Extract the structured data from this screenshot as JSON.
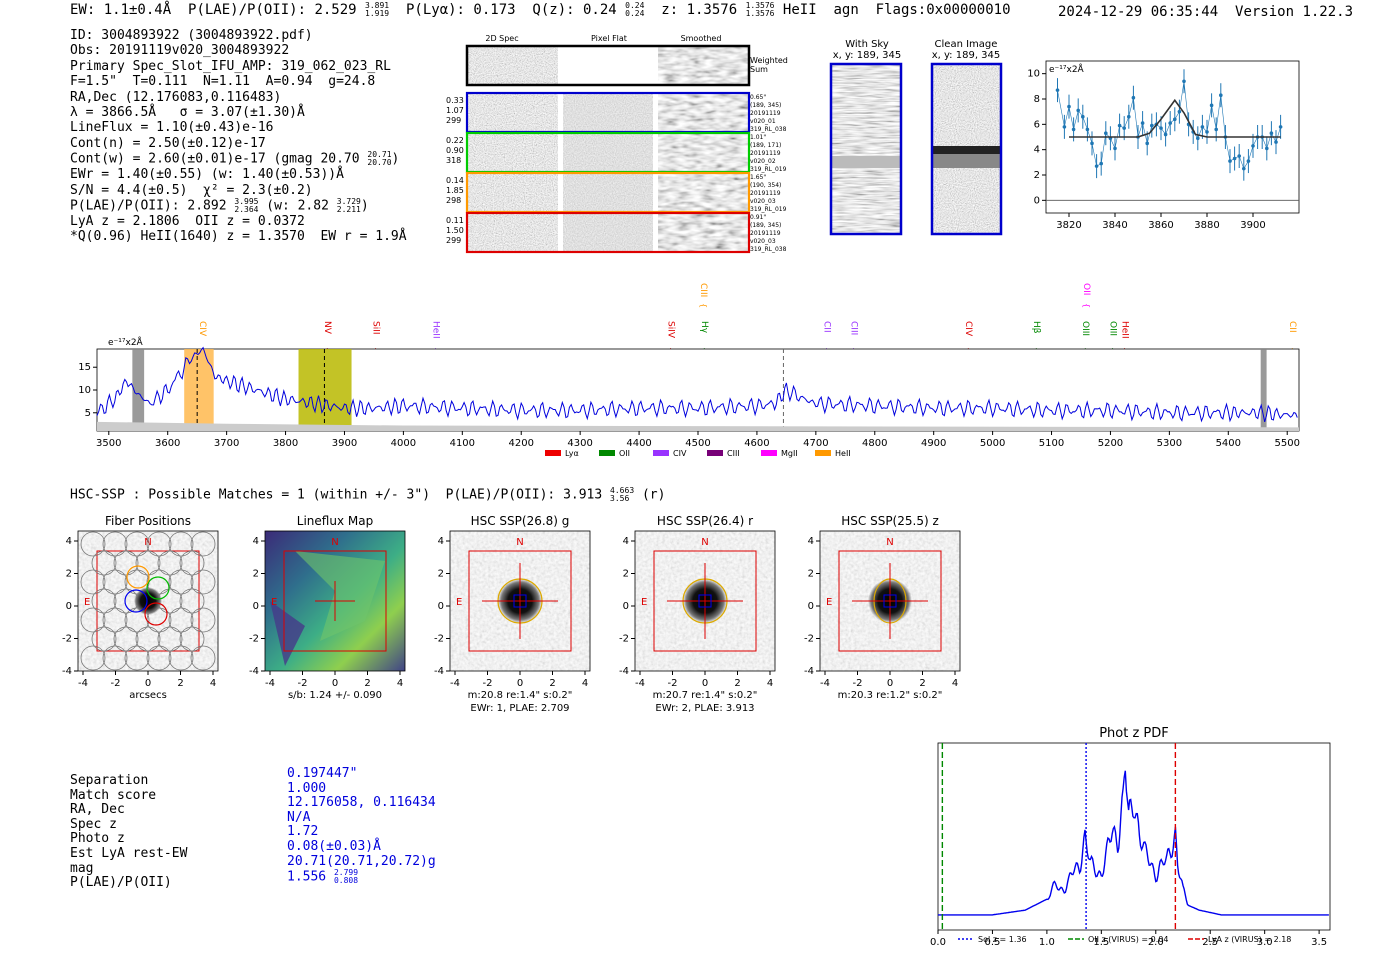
{
  "header": {
    "ew": "EW: 1.1±0.4Å",
    "plae": "P(LAE)/P(OII): 2.529",
    "plae_hi": "3.891",
    "plae_lo": "1.919",
    "plya": "P(Lyα): 0.173",
    "q": "Q(z): 0.24",
    "q_hi": "0.24",
    "q_lo": "0.24",
    "z": "z: 1.3576",
    "z_hi": "1.3576",
    "z_lo": "1.3576",
    "line": "HeII",
    "agn": "agn",
    "flags": "Flags:0x00000010",
    "datetime": "2024-12-29 06:35:44",
    "version": "Version 1.22.3"
  },
  "info": {
    "id": "ID: 3004893922 (3004893922.pdf)",
    "obs": "Obs: 20191119v020_3004893922",
    "primary": "Primary Spec_Slot_IFU_AMP: 319_062_023_RL",
    "params": "F=1.5\"  T=0.111  N=1.11  A=0.94  g=24.8",
    "radec": "RA,Dec (12.176083,0.116483)",
    "lambda": "λ = 3866.5Å   σ = 3.07(±1.30)Å",
    "lineflux": "LineFlux = 1.10(±0.43)e-16",
    "contn": "Cont(n) = 2.50(±0.12)e-17",
    "contw": "Cont(w) = 2.60(±0.01)e-17 (gmag 20.70",
    "contw_hi": "20.71",
    "contw_lo": "20.70",
    "ewr": "EWr = 1.40(±0.55) (w: 1.40(±0.53))Å",
    "sn": "S/N = 4.4(±0.5)  χ² = 2.3(±0.2)",
    "plae2": "P(LAE)/P(OII): 2.892",
    "plae2_hi": "3.995",
    "plae2_lo": "2.364",
    "plae2_w": "(w: 2.82",
    "plae2_w_hi": "3.729",
    "plae2_w_lo": "2.211",
    "lya": "LyA z = 2.1806  OII z = 0.0372",
    "q2": "*Q(0.96) HeII(1640) z = 1.3570  EW r = 1.9Å"
  },
  "cutouts": {
    "col_2d": "2D Spec",
    "col_flat": "Pixel Flat",
    "col_smooth": "Smoothed",
    "weighted": "Weighted",
    "sum": "Sum",
    "rows": [
      {
        "n1": "0.33",
        "n2": "1.07",
        "n3": "299",
        "t1": "0.65\"",
        "t2": "(189, 345)",
        "t3": "20191119",
        "t4": "v020_01",
        "t5": "319_RL_038",
        "color": "#0000cc"
      },
      {
        "n1": "0.22",
        "n2": "0.90",
        "n3": "318",
        "t1": "1.01\"",
        "t2": "(189, 171)",
        "t3": "20191119",
        "t4": "v020_02",
        "t5": "319_RL_019",
        "color": "#00cc00"
      },
      {
        "n1": "0.14",
        "n2": "1.85",
        "n3": "298",
        "t1": "1.65\"",
        "t2": "(190, 354)",
        "t3": "20191119",
        "t4": "v020_03",
        "t5": "319_RL_019",
        "color": "#ff9900"
      },
      {
        "n1": "0.11",
        "n2": "1.50",
        "n3": "299",
        "t1": "0.91\"",
        "t2": "(189, 345)",
        "t3": "20191119",
        "t4": "v020_03",
        "t5": "319_RL_038",
        "color": "#dd0000"
      }
    ]
  },
  "sky": {
    "with_sky": "With Sky",
    "clean": "Clean Image",
    "coords": "x, y: 189, 345"
  },
  "line_fit": {
    "ylabel": "e⁻¹⁷x2Å",
    "xticks": [
      "3820",
      "3840",
      "3860",
      "3880",
      "3900"
    ],
    "yticks": [
      "0",
      "2",
      "4",
      "6",
      "8",
      "10"
    ]
  },
  "spectrum": {
    "ylabel": "e⁻¹⁷x2Å",
    "xticks": [
      "3500",
      "3600",
      "3700",
      "3800",
      "3900",
      "4000",
      "4100",
      "4200",
      "4300",
      "4400",
      "4500",
      "4600",
      "4700",
      "4800",
      "4900",
      "5000",
      "5100",
      "5200",
      "5300",
      "5400",
      "5500"
    ],
    "yticks": [
      "5",
      "10",
      "15"
    ],
    "lines": [
      {
        "name": "CIV",
        "wl": 3650,
        "color": "#ff9900",
        "row": 1
      },
      {
        "name": "NV",
        "wl": 3862,
        "color": "#dd0000",
        "row": 1
      },
      {
        "name": "SiII",
        "wl": 3944,
        "color": "#dd0000",
        "row": 1
      },
      {
        "name": "HeII",
        "wl": 4046,
        "color": "#9933ff",
        "row": 1
      },
      {
        "name": "SiIV",
        "wl": 4445,
        "color": "#dd0000",
        "row": 1
      },
      {
        "name": "CIII",
        "wl": 4500,
        "color": "#ff9900",
        "row": 0
      },
      {
        "name": "Hγ",
        "wl": 4502,
        "color": "#008800",
        "row": 1
      },
      {
        "name": "CII",
        "wl": 4710,
        "color": "#9933ff",
        "row": 1
      },
      {
        "name": "CIII",
        "wl": 4755,
        "color": "#9933ff",
        "row": 1
      },
      {
        "name": "CIV",
        "wl": 4950,
        "color": "#dd0000",
        "row": 1
      },
      {
        "name": "Hβ",
        "wl": 5065,
        "color": "#008800",
        "row": 1
      },
      {
        "name": "OII",
        "wl": 5150,
        "color": "#ff00ff",
        "row": 0
      },
      {
        "name": "OIII",
        "wl": 5148,
        "color": "#008800",
        "row": 1
      },
      {
        "name": "OIII",
        "wl": 5195,
        "color": "#008800",
        "row": 1
      },
      {
        "name": "HeII",
        "wl": 5215,
        "color": "#dd0000",
        "row": 1
      },
      {
        "name": "CII",
        "wl": 5500,
        "color": "#ff9900",
        "row": 1
      }
    ],
    "legend": [
      {
        "name": "Lyα",
        "color": "#ee0000"
      },
      {
        "name": "OII",
        "color": "#008800"
      },
      {
        "name": "CIV",
        "color": "#9933ff"
      },
      {
        "name": "CIII",
        "color": "#770077"
      },
      {
        "name": "MgII",
        "color": "#ff00ff"
      },
      {
        "name": "HeII",
        "color": "#ff9900"
      }
    ]
  },
  "hsc": {
    "title": "HSC-SSP : Possible Matches = 1 (within +/- 3\")  P(LAE)/P(OII): 3.913",
    "title_hi": "4.663",
    "title_lo": "3.56",
    "title_band": "(r)",
    "panels": [
      {
        "title": "Fiber Positions",
        "cap1": "arcsecs",
        "cap2": ""
      },
      {
        "title": "Lineflux Map",
        "cap1": "s/b: 1.24 +/- 0.090",
        "cap2": ""
      },
      {
        "title": "HSC SSP(26.8) g",
        "cap1": "m:20.8  re:1.4\"  s:0.2\"",
        "cap2": "EWr: 1, PLAE: 2.709"
      },
      {
        "title": "HSC SSP(26.4) r",
        "cap1": "m:20.7  re:1.4\"  s:0.2\"",
        "cap2": "EWr: 2, PLAE: 3.913"
      },
      {
        "title": "HSC SSP(25.5) z",
        "cap1": "m:20.3  re:1.2\"  s:0.2\"",
        "cap2": ""
      }
    ],
    "ticks": [
      "-4",
      "-2",
      "0",
      "2",
      "4"
    ],
    "north": "N",
    "east": "E"
  },
  "match": {
    "labels": [
      "Separation",
      "Match score",
      "RA, Dec",
      "Spec z",
      "Photo z",
      "Est LyA rest-EW",
      "mag",
      "P(LAE)/P(OII)"
    ],
    "separation": "0.197447\"",
    "score": "1.000",
    "radec": "12.176058, 0.116434",
    "specz": "N/A",
    "photoz": "1.72",
    "ew": "0.08(±0.03)Å",
    "mag": "20.71(20.71,20.72)g",
    "plae": "1.556",
    "plae_hi": "2.799",
    "plae_lo": "0.808"
  },
  "chart_data": [
    {
      "type": "line",
      "title": "Phot z PDF",
      "xlabel": "",
      "ylabel": "",
      "xlim": [
        0.0,
        3.6
      ],
      "xticks": [
        "0.0",
        "0.5",
        "1.0",
        "1.5",
        "2.0",
        "2.5",
        "3.0",
        "3.5"
      ],
      "series": [
        {
          "name": "PDF",
          "color": "#0000ee",
          "x": [
            0.0,
            0.5,
            0.8,
            1.0,
            1.1,
            1.2,
            1.3,
            1.35,
            1.4,
            1.5,
            1.55,
            1.6,
            1.65,
            1.7,
            1.72,
            1.75,
            1.8,
            1.85,
            1.9,
            2.0,
            2.1,
            2.15,
            2.18,
            2.2,
            2.25,
            2.3,
            2.4,
            2.6,
            3.0,
            3.6
          ],
          "y": [
            0.02,
            0.02,
            0.05,
            0.12,
            0.2,
            0.22,
            0.35,
            0.52,
            0.32,
            0.3,
            0.4,
            0.55,
            0.5,
            0.75,
            1.0,
            0.62,
            0.75,
            0.55,
            0.4,
            0.3,
            0.35,
            0.48,
            0.55,
            0.35,
            0.15,
            0.08,
            0.05,
            0.02,
            0.02,
            0.02
          ]
        }
      ],
      "vlines": [
        {
          "name": "Sol z = 1.36",
          "x": 1.36,
          "color": "#0000ee",
          "style": "dotted"
        },
        {
          "name": "OII z (VIRUS) = 0.04",
          "x": 0.04,
          "color": "#008800",
          "style": "dashed"
        },
        {
          "name": "LyA z (VIRUS) = 2.18",
          "x": 2.18,
          "color": "#dd0000",
          "style": "dashed"
        }
      ]
    },
    {
      "type": "line",
      "title": "",
      "xlabel": "",
      "ylabel": "e⁻¹⁷x2Å",
      "xlim": [
        3810,
        3920
      ],
      "ylim": [
        -1,
        11
      ],
      "series": [
        {
          "name": "data",
          "color": "#1f77b4",
          "x": [
            3815,
            3818,
            3820,
            3822,
            3824,
            3826,
            3828,
            3830,
            3832,
            3834,
            3836,
            3838,
            3840,
            3842,
            3844,
            3846,
            3848,
            3850,
            3852,
            3854,
            3856,
            3858,
            3860,
            3862,
            3864,
            3866,
            3868,
            3870,
            3872,
            3874,
            3876,
            3878,
            3880,
            3882,
            3884,
            3886,
            3888,
            3890,
            3892,
            3894,
            3896,
            3898,
            3900,
            3902,
            3904,
            3906,
            3908,
            3910,
            3912
          ],
          "y": [
            8.7,
            5.8,
            7.4,
            5.6,
            7.1,
            6.6,
            5.6,
            4.5,
            2.7,
            2.9,
            5.3,
            4.9,
            4.1,
            5.9,
            5.7,
            6.6,
            8.1,
            5.0,
            6.1,
            4.5,
            5.9,
            6.0,
            5.7,
            5.2,
            6.1,
            6.4,
            7.0,
            9.4,
            6.0,
            5.4,
            4.9,
            5.8,
            5.4,
            7.5,
            5.6,
            8.3,
            5.0,
            3.1,
            3.3,
            3.5,
            2.5,
            3.1,
            4.3,
            5.0,
            5.0,
            4.1,
            5.3,
            4.6,
            5.8
          ]
        },
        {
          "name": "fit",
          "color": "#333333",
          "x": [
            3820,
            3850,
            3855,
            3860,
            3866,
            3870,
            3875,
            3880,
            3912
          ],
          "y": [
            5.0,
            5.0,
            5.3,
            6.4,
            7.9,
            6.9,
            5.2,
            5.0,
            5.0
          ]
        }
      ]
    },
    {
      "type": "line",
      "title": "",
      "xlabel": "",
      "ylabel": "e⁻¹⁷x2Å",
      "xlim": [
        3480,
        5520
      ],
      "ylim": [
        1,
        19
      ],
      "regions": [
        {
          "x0": 3540,
          "x1": 3560,
          "color": "#888888"
        },
        {
          "x0": 3628,
          "x1": 3678,
          "color": "#ffb84d"
        },
        {
          "x0": 3822,
          "x1": 3912,
          "color": "#b8b800"
        },
        {
          "x0": 5455,
          "x1": 5465,
          "color": "#888888"
        }
      ],
      "markers": [
        3650,
        3866,
        4645
      ],
      "series": [
        {
          "name": "flux",
          "color": "#0000dd",
          "x": [
            3480,
            3510,
            3530,
            3550,
            3570,
            3600,
            3640,
            3660,
            3680,
            3700,
            3750,
            3800,
            3850,
            3900,
            3950,
            4000,
            4100,
            4200,
            4300,
            4400,
            4500,
            4600,
            4630,
            4650,
            4680,
            4700,
            4800,
            4900,
            5000,
            5100,
            5200,
            5300,
            5400,
            5450,
            5500,
            5520
          ],
          "y": [
            5,
            8,
            12,
            9,
            7,
            10,
            17,
            19,
            13,
            12,
            10,
            8,
            7,
            6,
            6,
            6.5,
            6,
            5.5,
            5.5,
            6,
            6,
            6.5,
            7,
            10,
            8,
            7,
            6.5,
            6,
            6,
            5.5,
            5.5,
            5,
            5,
            5,
            4.5,
            4.5
          ]
        }
      ]
    }
  ]
}
